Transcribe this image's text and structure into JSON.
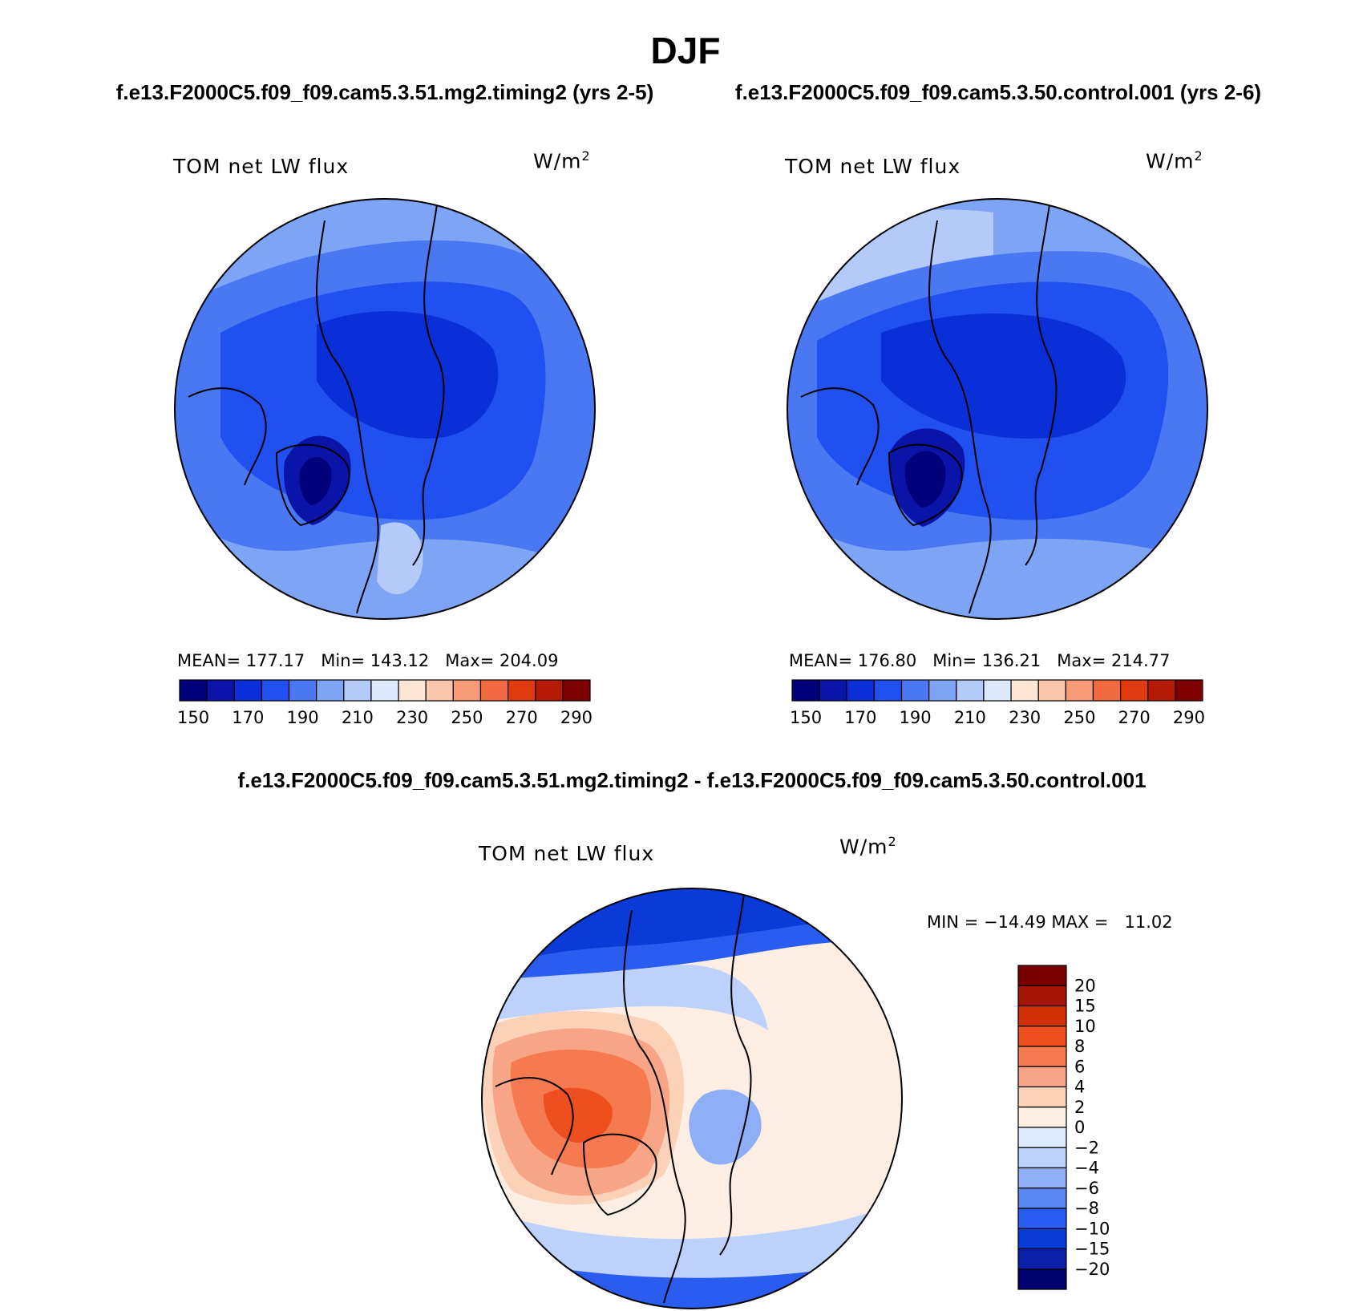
{
  "header": {
    "title": "DJF",
    "case1": "f.e13.F2000C5.f09_f09.cam5.3.51.mg2.timing2 (yrs 2-5)",
    "case2": "f.e13.F2000C5.f09_f09.cam5.3.50.control.001 (yrs 2-6)",
    "diff": "f.e13.F2000C5.f09_f09.cam5.3.51.mg2.timing2 - f.e13.F2000C5.f09_f09.cam5.3.50.control.001"
  },
  "panels": [
    {
      "title": "TOM net LW flux",
      "unit": "W/m",
      "unit_sup": "2",
      "stats": "MEAN= 177.17   Min= 143.12   Max= 204.09",
      "mean": 177.17,
      "min": 143.12,
      "max": 204.09
    },
    {
      "title": "TOM net LW flux",
      "unit": "W/m",
      "unit_sup": "2",
      "stats": "MEAN= 176.80   Min= 136.21   Max= 214.77",
      "mean": 176.8,
      "min": 136.21,
      "max": 214.77
    },
    {
      "title": "TOM net LW flux",
      "unit": "W/m",
      "unit_sup": "2",
      "stats": "MIN = −14.49 MAX =   11.02",
      "min": -14.49,
      "max": 11.02
    }
  ],
  "colors": {
    "abs_scale": [
      "#00007a",
      "#0a14a8",
      "#0a2fd8",
      "#2050f0",
      "#4a78f2",
      "#7ea4f6",
      "#b4cbfa",
      "#dce8fd",
      "#fde6d6",
      "#fbc7ac",
      "#f79a78",
      "#f26a42",
      "#df3a10",
      "#b51a06",
      "#7e0000"
    ],
    "diff_scale": [
      "#00006e",
      "#0a1ea8",
      "#0a3ad8",
      "#2a5cf0",
      "#5a86f2",
      "#8eaff7",
      "#bcd1fb",
      "#dde9fd",
      "#fdeee3",
      "#fbd1b8",
      "#f8a486",
      "#f57a4f",
      "#ee4f1e",
      "#d22f06",
      "#a41404",
      "#7a0000"
    ]
  },
  "chart_data": [
    {
      "type": "heatmap",
      "subtype": "polar-stereographic filled contour",
      "title": "TOM net LW flux",
      "unit": "W/m2",
      "colorbar_levels": [
        150,
        160,
        170,
        180,
        190,
        200,
        210,
        220,
        230,
        240,
        250,
        260,
        270,
        280,
        290
      ],
      "colorbar_labels": [
        "150",
        "170",
        "190",
        "210",
        "230",
        "250",
        "270",
        "290"
      ],
      "mean": 177.17,
      "min": 143.12,
      "max": 204.09
    },
    {
      "type": "heatmap",
      "subtype": "polar-stereographic filled contour",
      "title": "TOM net LW flux",
      "unit": "W/m2",
      "colorbar_levels": [
        150,
        160,
        170,
        180,
        190,
        200,
        210,
        220,
        230,
        240,
        250,
        260,
        270,
        280,
        290
      ],
      "colorbar_labels": [
        "150",
        "170",
        "190",
        "210",
        "230",
        "250",
        "270",
        "290"
      ],
      "mean": 176.8,
      "min": 136.21,
      "max": 214.77
    },
    {
      "type": "heatmap",
      "subtype": "polar-stereographic filled contour (difference)",
      "title": "TOM net LW flux",
      "unit": "W/m2",
      "colorbar_levels": [
        -20,
        -15,
        -10,
        -8,
        -6,
        -4,
        -2,
        0,
        2,
        4,
        6,
        8,
        10,
        15,
        20
      ],
      "colorbar_labels": [
        "20",
        "15",
        "10",
        "8",
        "6",
        "4",
        "2",
        "0",
        "−2",
        "−4",
        "−6",
        "−8",
        "−10",
        "−15",
        "−20"
      ],
      "min": -14.49,
      "max": 11.02
    }
  ]
}
